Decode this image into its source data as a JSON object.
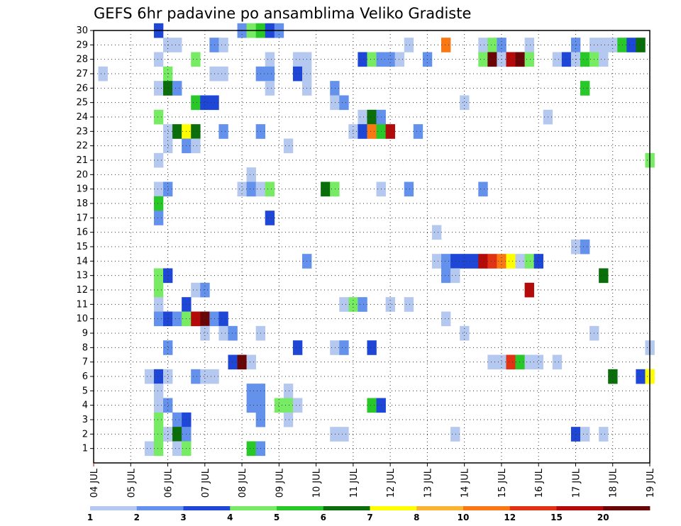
{
  "chart_data": {
    "type": "heatmap",
    "title": "GEFS 6hr padavine po ansamblima Veliko Gradiste",
    "xlabel": "",
    "ylabel": "",
    "x_tick_labels": [
      "04 JUL",
      "05 JUL",
      "06 JUL",
      "07 JUL",
      "08 JUL",
      "09 JUL",
      "10 JUL",
      "11 JUL",
      "12 JUL",
      "13 JUL",
      "14 JUL",
      "15 JUL",
      "16 JUL",
      "17 JUL",
      "18 JUL",
      "19 JUL"
    ],
    "x_unit": "6-hour steps from 04 JUL 00Z",
    "x_range": [
      0,
      60
    ],
    "y_tick_labels": [
      "1",
      "2",
      "3",
      "4",
      "5",
      "6",
      "7",
      "8",
      "9",
      "10",
      "11",
      "12",
      "13",
      "14",
      "15",
      "16",
      "17",
      "18",
      "19",
      "20",
      "21",
      "22",
      "23",
      "24",
      "25",
      "26",
      "27",
      "28",
      "29",
      "30"
    ],
    "y_range": [
      0,
      30
    ],
    "grid": "dotted",
    "legend_position": "bottom",
    "legend": {
      "labels": [
        "1",
        "2",
        "3",
        "4",
        "5",
        "6",
        "7",
        "8",
        "10",
        "12",
        "15",
        "20"
      ],
      "colors": [
        "#b4c8f0",
        "#6491eb",
        "#1e46d7",
        "#78eb64",
        "#28c828",
        "#0a6e0a",
        "#ffff00",
        "#fab432",
        "#fa7814",
        "#e13214",
        "#b40a0a",
        "#690505"
      ]
    },
    "cells": [
      [
        7,
        30,
        3
      ],
      [
        16,
        30,
        2
      ],
      [
        17,
        30,
        4
      ],
      [
        18,
        30,
        5
      ],
      [
        19,
        30,
        3
      ],
      [
        20,
        30,
        2
      ],
      [
        8,
        29,
        1
      ],
      [
        9,
        29,
        1
      ],
      [
        13,
        29,
        2
      ],
      [
        14,
        29,
        1
      ],
      [
        34,
        29,
        1
      ],
      [
        38,
        29,
        9
      ],
      [
        42,
        29,
        1
      ],
      [
        43,
        29,
        4
      ],
      [
        44,
        29,
        2
      ],
      [
        47,
        29,
        1
      ],
      [
        52,
        29,
        2
      ],
      [
        54,
        29,
        1
      ],
      [
        55,
        29,
        1
      ],
      [
        56,
        29,
        1
      ],
      [
        57,
        29,
        5
      ],
      [
        58,
        29,
        3
      ],
      [
        59,
        29,
        6
      ],
      [
        7,
        28,
        1
      ],
      [
        11,
        28,
        4
      ],
      [
        19,
        28,
        1
      ],
      [
        22,
        28,
        1
      ],
      [
        23,
        28,
        1
      ],
      [
        29,
        28,
        3
      ],
      [
        30,
        28,
        4
      ],
      [
        31,
        28,
        2
      ],
      [
        32,
        28,
        2
      ],
      [
        33,
        28,
        1
      ],
      [
        36,
        28,
        2
      ],
      [
        42,
        28,
        4
      ],
      [
        43,
        28,
        12
      ],
      [
        44,
        28,
        1
      ],
      [
        45,
        28,
        11
      ],
      [
        46,
        28,
        12
      ],
      [
        47,
        28,
        4
      ],
      [
        50,
        28,
        1
      ],
      [
        51,
        28,
        3
      ],
      [
        52,
        28,
        1
      ],
      [
        53,
        28,
        5
      ],
      [
        54,
        28,
        4
      ],
      [
        55,
        28,
        1
      ],
      [
        1,
        27,
        1
      ],
      [
        8,
        27,
        4
      ],
      [
        13,
        27,
        1
      ],
      [
        14,
        27,
        1
      ],
      [
        18,
        27,
        2
      ],
      [
        19,
        27,
        2
      ],
      [
        22,
        27,
        3
      ],
      [
        23,
        27,
        1
      ],
      [
        7,
        26,
        1
      ],
      [
        8,
        26,
        6
      ],
      [
        9,
        26,
        2
      ],
      [
        19,
        26,
        1
      ],
      [
        23,
        26,
        1
      ],
      [
        26,
        26,
        2
      ],
      [
        53,
        26,
        5
      ],
      [
        11,
        25,
        5
      ],
      [
        12,
        25,
        3
      ],
      [
        13,
        25,
        3
      ],
      [
        26,
        25,
        1
      ],
      [
        27,
        25,
        2
      ],
      [
        40,
        25,
        1
      ],
      [
        7,
        24,
        4
      ],
      [
        29,
        24,
        1
      ],
      [
        30,
        24,
        6
      ],
      [
        31,
        24,
        2
      ],
      [
        49,
        24,
        1
      ],
      [
        8,
        23,
        1
      ],
      [
        9,
        23,
        6
      ],
      [
        10,
        23,
        7
      ],
      [
        11,
        23,
        6
      ],
      [
        14,
        23,
        2
      ],
      [
        18,
        23,
        2
      ],
      [
        28,
        23,
        1
      ],
      [
        29,
        23,
        3
      ],
      [
        30,
        23,
        9
      ],
      [
        31,
        23,
        5
      ],
      [
        32,
        23,
        11
      ],
      [
        35,
        23,
        2
      ],
      [
        8,
        22,
        1
      ],
      [
        10,
        22,
        2
      ],
      [
        11,
        22,
        1
      ],
      [
        21,
        22,
        1
      ],
      [
        7,
        21,
        1
      ],
      [
        17,
        20,
        1
      ],
      [
        60,
        21,
        4
      ],
      [
        7,
        19,
        1
      ],
      [
        8,
        19,
        2
      ],
      [
        16,
        19,
        1
      ],
      [
        17,
        19,
        2
      ],
      [
        18,
        19,
        1
      ],
      [
        19,
        19,
        4
      ],
      [
        25,
        19,
        6
      ],
      [
        26,
        19,
        4
      ],
      [
        31,
        19,
        1
      ],
      [
        34,
        19,
        2
      ],
      [
        42,
        19,
        2
      ],
      [
        7,
        18,
        5
      ],
      [
        7,
        17,
        2
      ],
      [
        19,
        17,
        3
      ],
      [
        37,
        16,
        1
      ],
      [
        52,
        15,
        1
      ],
      [
        53,
        15,
        2
      ],
      [
        23,
        14,
        2
      ],
      [
        37,
        14,
        1
      ],
      [
        38,
        14,
        2
      ],
      [
        39,
        14,
        3
      ],
      [
        40,
        14,
        3
      ],
      [
        41,
        14,
        3
      ],
      [
        42,
        14,
        11
      ],
      [
        43,
        14,
        10
      ],
      [
        44,
        14,
        9
      ],
      [
        45,
        14,
        7
      ],
      [
        46,
        14,
        1
      ],
      [
        47,
        14,
        4
      ],
      [
        48,
        14,
        3
      ],
      [
        7,
        13,
        4
      ],
      [
        8,
        13,
        3
      ],
      [
        38,
        13,
        2
      ],
      [
        39,
        13,
        1
      ],
      [
        55,
        13,
        6
      ],
      [
        7,
        12,
        4
      ],
      [
        11,
        12,
        1
      ],
      [
        12,
        12,
        2
      ],
      [
        47,
        12,
        11
      ],
      [
        7,
        11,
        1
      ],
      [
        10,
        11,
        3
      ],
      [
        27,
        11,
        1
      ],
      [
        28,
        11,
        4
      ],
      [
        29,
        11,
        2
      ],
      [
        32,
        11,
        1
      ],
      [
        34,
        11,
        1
      ],
      [
        7,
        10,
        2
      ],
      [
        8,
        10,
        3
      ],
      [
        9,
        10,
        2
      ],
      [
        10,
        10,
        4
      ],
      [
        11,
        10,
        11
      ],
      [
        12,
        10,
        12
      ],
      [
        13,
        10,
        2
      ],
      [
        14,
        10,
        3
      ],
      [
        38,
        10,
        1
      ],
      [
        12,
        9,
        1
      ],
      [
        14,
        9,
        1
      ],
      [
        15,
        9,
        2
      ],
      [
        18,
        9,
        1
      ],
      [
        40,
        9,
        1
      ],
      [
        54,
        9,
        1
      ],
      [
        8,
        8,
        2
      ],
      [
        22,
        8,
        3
      ],
      [
        26,
        8,
        1
      ],
      [
        27,
        8,
        2
      ],
      [
        30,
        8,
        3
      ],
      [
        60,
        8,
        1
      ],
      [
        15,
        7,
        3
      ],
      [
        16,
        7,
        12
      ],
      [
        17,
        7,
        1
      ],
      [
        43,
        7,
        1
      ],
      [
        44,
        7,
        1
      ],
      [
        45,
        7,
        10
      ],
      [
        46,
        7,
        5
      ],
      [
        47,
        7,
        1
      ],
      [
        48,
        7,
        1
      ],
      [
        50,
        7,
        1
      ],
      [
        6,
        6,
        1
      ],
      [
        7,
        6,
        3
      ],
      [
        8,
        6,
        1
      ],
      [
        11,
        6,
        2
      ],
      [
        12,
        6,
        1
      ],
      [
        13,
        6,
        1
      ],
      [
        56,
        6,
        6
      ],
      [
        59,
        6,
        3
      ],
      [
        60,
        6,
        7
      ],
      [
        7,
        5,
        1
      ],
      [
        17,
        5,
        2
      ],
      [
        18,
        5,
        2
      ],
      [
        21,
        5,
        1
      ],
      [
        7,
        4,
        1
      ],
      [
        8,
        4,
        2
      ],
      [
        17,
        4,
        2
      ],
      [
        18,
        4,
        2
      ],
      [
        20,
        4,
        4
      ],
      [
        21,
        4,
        4
      ],
      [
        22,
        4,
        1
      ],
      [
        30,
        4,
        5
      ],
      [
        31,
        4,
        3
      ],
      [
        7,
        3,
        4
      ],
      [
        9,
        3,
        2
      ],
      [
        10,
        3,
        3
      ],
      [
        18,
        3,
        2
      ],
      [
        21,
        3,
        1
      ],
      [
        7,
        2,
        4
      ],
      [
        8,
        2,
        1
      ],
      [
        9,
        2,
        6
      ],
      [
        10,
        2,
        2
      ],
      [
        26,
        2,
        1
      ],
      [
        27,
        2,
        1
      ],
      [
        39,
        2,
        1
      ],
      [
        52,
        2,
        3
      ],
      [
        53,
        2,
        1
      ],
      [
        55,
        2,
        1
      ],
      [
        6,
        1,
        1
      ],
      [
        7,
        1,
        4
      ],
      [
        9,
        1,
        1
      ],
      [
        10,
        1,
        4
      ],
      [
        17,
        1,
        5
      ],
      [
        18,
        1,
        2
      ]
    ]
  }
}
